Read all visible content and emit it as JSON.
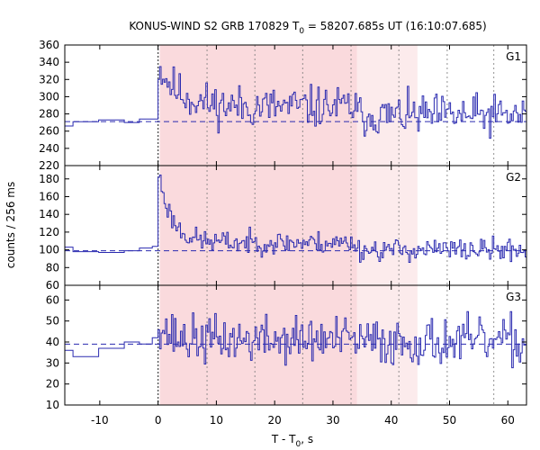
{
  "chart_data": {
    "type": "line",
    "title": {
      "prefix": "KONUS-WIND S2 GRB 170829 T",
      "sub": "0",
      "suffix": " = 58207.685s UT (16:10:07.685)"
    },
    "xlabel": {
      "prefix": "T - T",
      "sub": "0",
      "suffix": ", s"
    },
    "ylabel": "counts / 256 ms",
    "xlim": [
      -16,
      63.2
    ],
    "xticks": [
      -10,
      0,
      10,
      20,
      30,
      40,
      50,
      60
    ],
    "shaded_regions": [
      {
        "from": 0.3,
        "to": 34.1,
        "color": "#fadadd"
      },
      {
        "from": 34.1,
        "to": 44.5,
        "color": "#fcebec"
      }
    ],
    "vlines": [
      0.0,
      8.4,
      16.6,
      24.8,
      33.1,
      41.3,
      49.6,
      57.6
    ],
    "trigger_line": 0.0,
    "series_color": "#2b2bb0",
    "panels": [
      {
        "name": "G1",
        "ylim": [
          220,
          360
        ],
        "yticks": [
          220,
          240,
          260,
          280,
          300,
          320,
          340,
          360
        ],
        "background": 271,
        "pre_steps": [
          [
            -16,
            266
          ],
          [
            -14.6,
            271
          ],
          [
            -10.2,
            273
          ],
          [
            -5.8,
            270
          ],
          [
            -3.2,
            274
          ],
          [
            -0.4,
            274
          ]
        ],
        "base_after": 288,
        "peak": 335,
        "decay": 3.5,
        "tail": 278,
        "noise": 17,
        "seed": 11
      },
      {
        "name": "G2",
        "ylim": [
          60,
          195
        ],
        "yticks": [
          60,
          80,
          100,
          120,
          140,
          160,
          180
        ],
        "background": 99,
        "pre_steps": [
          [
            -16,
            103
          ],
          [
            -14.6,
            98
          ],
          [
            -10.2,
            97
          ],
          [
            -5.8,
            99
          ],
          [
            -3.2,
            102
          ],
          [
            -1.0,
            104
          ]
        ],
        "base_after": 108,
        "peak": 186,
        "decay": 2.2,
        "tail": 100,
        "noise": 9,
        "seed": 23
      },
      {
        "name": "G3",
        "ylim": [
          10,
          67
        ],
        "yticks": [
          10,
          20,
          30,
          40,
          50,
          60
        ],
        "background": 39,
        "pre_steps": [
          [
            -16,
            36
          ],
          [
            -14.6,
            33
          ],
          [
            -10.2,
            37
          ],
          [
            -5.8,
            40
          ],
          [
            -3.2,
            39
          ],
          [
            -1.0,
            42
          ]
        ],
        "base_after": 41,
        "peak": 51,
        "decay": 1.5,
        "tail": 40,
        "noise": 8,
        "seed": 37
      }
    ]
  }
}
